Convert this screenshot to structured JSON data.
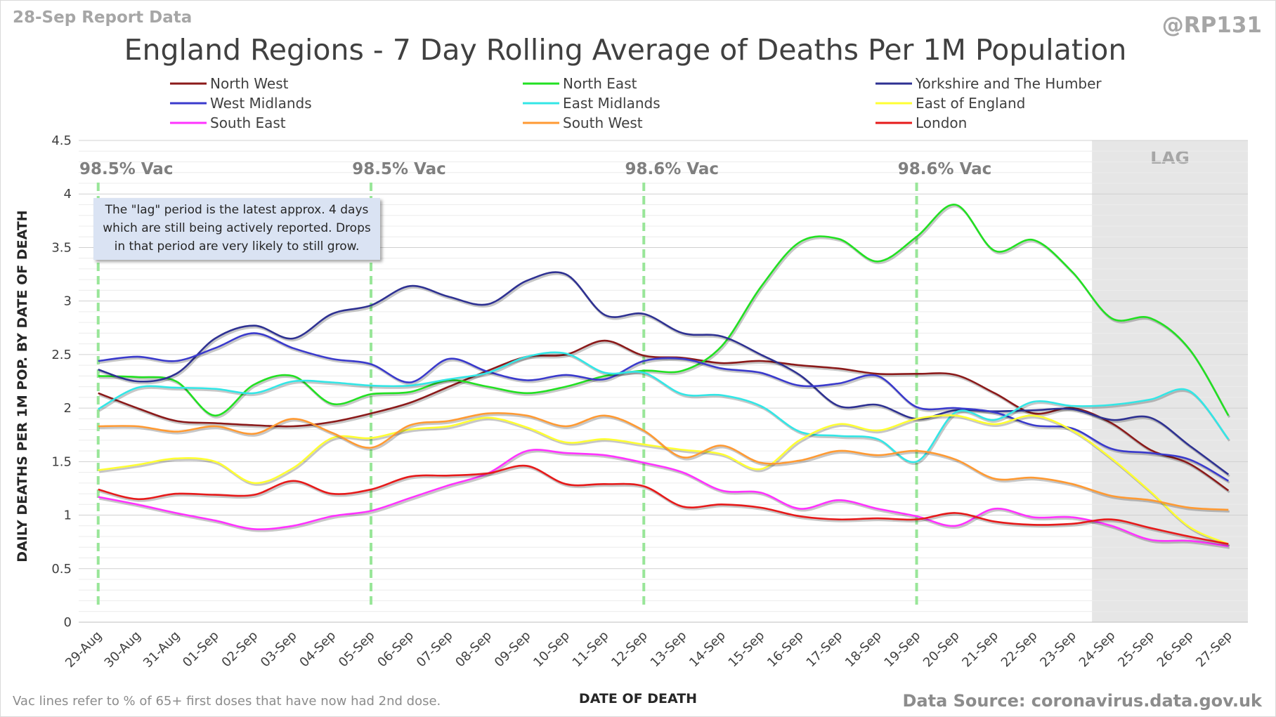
{
  "header": {
    "report_label": "28-Sep Report Data",
    "handle": "@RP131",
    "title": "England Regions - 7 Day Rolling Average of Deaths Per 1M Population"
  },
  "annotations": {
    "lag_label": "LAG",
    "note_lines": [
      "The \"lag\" period is the latest approx. 4 days",
      "which are still being actively reported.  Drops",
      "in that period are very likely to still grow."
    ],
    "vac_lines": [
      {
        "x": "29-Aug",
        "label": "98.5% Vac"
      },
      {
        "x": "05-Sep",
        "label": "98.5% Vac"
      },
      {
        "x": "12-Sep",
        "label": "98.6% Vac"
      },
      {
        "x": "19-Sep",
        "label": "98.6% Vac"
      }
    ],
    "vac_line_color": "#99e699",
    "lag_start": "24-Sep",
    "lag_color": "#e6e6e6"
  },
  "footer": {
    "note": "Vac lines refer to % of 65+ first doses that have now had 2nd dose.",
    "source": "Data Source: coronavirus.data.gov.uk"
  },
  "chart_data": {
    "type": "line",
    "title": "England Regions - 7 Day Rolling Average of Deaths Per 1M Population",
    "xlabel": "DATE OF DEATH",
    "ylabel": "DAILY DEATHS PER 1M POP. BY DATE OF DEATH",
    "ylim": [
      0,
      4.5
    ],
    "yticks": [
      0,
      0.5,
      1,
      1.5,
      2,
      2.5,
      3,
      3.5,
      4,
      4.5
    ],
    "grid": "horizontal",
    "legend_position": "top",
    "x": [
      "29-Aug",
      "30-Aug",
      "31-Aug",
      "01-Sep",
      "02-Sep",
      "03-Sep",
      "04-Sep",
      "05-Sep",
      "06-Sep",
      "07-Sep",
      "08-Sep",
      "09-Sep",
      "10-Sep",
      "11-Sep",
      "12-Sep",
      "13-Sep",
      "14-Sep",
      "15-Sep",
      "16-Sep",
      "17-Sep",
      "18-Sep",
      "19-Sep",
      "20-Sep",
      "21-Sep",
      "22-Sep",
      "23-Sep",
      "24-Sep",
      "25-Sep",
      "26-Sep",
      "27-Sep"
    ],
    "series": [
      {
        "name": "North West",
        "color": "#8b1a1a",
        "values": [
          2.14,
          2.0,
          1.88,
          1.86,
          1.84,
          1.83,
          1.87,
          1.95,
          2.05,
          2.2,
          2.35,
          2.48,
          2.5,
          2.63,
          2.49,
          2.47,
          2.42,
          2.44,
          2.4,
          2.37,
          2.32,
          2.32,
          2.31,
          2.14,
          1.95,
          2.0,
          1.86,
          1.61,
          1.48,
          1.23
        ]
      },
      {
        "name": "North East",
        "color": "#22e022",
        "values": [
          2.3,
          2.29,
          2.25,
          1.93,
          2.22,
          2.3,
          2.04,
          2.13,
          2.15,
          2.26,
          2.2,
          2.14,
          2.2,
          2.3,
          2.35,
          2.35,
          2.58,
          3.13,
          3.55,
          3.58,
          3.37,
          3.6,
          3.9,
          3.47,
          3.57,
          3.27,
          2.84,
          2.84,
          2.55,
          1.93
        ]
      },
      {
        "name": "Yorkshire and The Humber",
        "color": "#2e3192",
        "values": [
          2.36,
          2.25,
          2.32,
          2.65,
          2.77,
          2.65,
          2.88,
          2.96,
          3.14,
          3.04,
          2.97,
          3.19,
          3.25,
          2.87,
          2.88,
          2.7,
          2.67,
          2.5,
          2.31,
          2.02,
          2.03,
          1.9,
          1.98,
          1.97,
          1.98,
          1.99,
          1.89,
          1.91,
          1.65,
          1.38
        ]
      },
      {
        "name": "West Midlands",
        "color": "#3a3acc",
        "values": [
          2.44,
          2.48,
          2.44,
          2.56,
          2.7,
          2.56,
          2.46,
          2.41,
          2.24,
          2.46,
          2.34,
          2.26,
          2.31,
          2.27,
          2.44,
          2.46,
          2.37,
          2.33,
          2.21,
          2.23,
          2.3,
          2.01,
          2.0,
          1.96,
          1.84,
          1.81,
          1.62,
          1.58,
          1.52,
          1.32
        ]
      },
      {
        "name": "East Midlands",
        "color": "#33e6e6",
        "values": [
          1.99,
          2.19,
          2.19,
          2.18,
          2.14,
          2.25,
          2.24,
          2.21,
          2.21,
          2.27,
          2.33,
          2.48,
          2.51,
          2.33,
          2.33,
          2.13,
          2.12,
          2.02,
          1.78,
          1.74,
          1.71,
          1.5,
          1.96,
          1.89,
          2.06,
          2.02,
          2.03,
          2.08,
          2.16,
          1.71
        ]
      },
      {
        "name": "East of England",
        "color": "#ffff33",
        "values": [
          1.42,
          1.47,
          1.53,
          1.5,
          1.3,
          1.44,
          1.72,
          1.72,
          1.8,
          1.83,
          1.91,
          1.82,
          1.68,
          1.71,
          1.66,
          1.61,
          1.57,
          1.43,
          1.7,
          1.85,
          1.79,
          1.9,
          1.93,
          1.85,
          1.93,
          1.79,
          1.53,
          1.22,
          0.89,
          0.73
        ]
      },
      {
        "name": "South East",
        "color": "#ff33ff",
        "values": [
          1.17,
          1.1,
          1.02,
          0.95,
          0.87,
          0.9,
          0.99,
          1.04,
          1.16,
          1.28,
          1.39,
          1.6,
          1.58,
          1.56,
          1.49,
          1.4,
          1.23,
          1.21,
          1.06,
          1.14,
          1.06,
          0.99,
          0.9,
          1.06,
          0.98,
          0.98,
          0.9,
          0.77,
          0.76,
          0.71
        ]
      },
      {
        "name": "South West",
        "color": "#ff9a33",
        "values": [
          1.83,
          1.83,
          1.78,
          1.83,
          1.76,
          1.9,
          1.77,
          1.63,
          1.84,
          1.88,
          1.95,
          1.93,
          1.83,
          1.93,
          1.79,
          1.54,
          1.65,
          1.49,
          1.51,
          1.6,
          1.56,
          1.6,
          1.52,
          1.34,
          1.35,
          1.29,
          1.18,
          1.14,
          1.07,
          1.05
        ]
      },
      {
        "name": "London",
        "color": "#e61a1a",
        "values": [
          1.24,
          1.15,
          1.2,
          1.19,
          1.19,
          1.32,
          1.2,
          1.24,
          1.36,
          1.37,
          1.39,
          1.46,
          1.29,
          1.29,
          1.27,
          1.08,
          1.1,
          1.07,
          0.99,
          0.96,
          0.97,
          0.96,
          1.02,
          0.94,
          0.91,
          0.92,
          0.96,
          0.88,
          0.8,
          0.73
        ]
      }
    ]
  }
}
